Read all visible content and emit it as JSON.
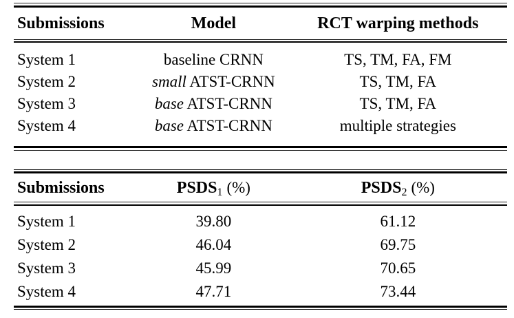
{
  "page": {
    "background": "#ffffff",
    "text_color": "#000000"
  },
  "systems_table": {
    "headers": [
      "Submissions",
      "Model",
      "RCT warping methods"
    ],
    "rows": [
      {
        "submission": "System 1",
        "model_variant": "baseline",
        "model_name": "CRNN",
        "methods": "TS, TM, FA, FM"
      },
      {
        "submission": "System 2",
        "model_variant": "small",
        "model_name": "ATST-CRNN",
        "methods": "TS, TM, FA"
      },
      {
        "submission": "System 3",
        "model_variant": "base",
        "model_name": "ATST-CRNN",
        "methods": "TS, TM, FA"
      },
      {
        "submission": "System 4",
        "model_variant": "base",
        "model_name": "ATST-CRNN",
        "methods": "multiple strategies"
      }
    ]
  },
  "results_table": {
    "headers": {
      "col1": "Submissions",
      "col2": {
        "label": "PSDS",
        "sub": "1",
        "suffix": "(%)"
      },
      "col3": {
        "label": "PSDS",
        "sub": "2",
        "suffix": "(%)"
      }
    },
    "rows": [
      {
        "submission": "System 1",
        "psds1": "39.80",
        "psds2": "61.12"
      },
      {
        "submission": "System 2",
        "psds1": "46.04",
        "psds2": "69.75"
      },
      {
        "submission": "System 3",
        "psds1": "45.99",
        "psds2": "70.65"
      },
      {
        "submission": "System 4",
        "psds1": "47.71",
        "psds2": "73.44"
      }
    ]
  }
}
